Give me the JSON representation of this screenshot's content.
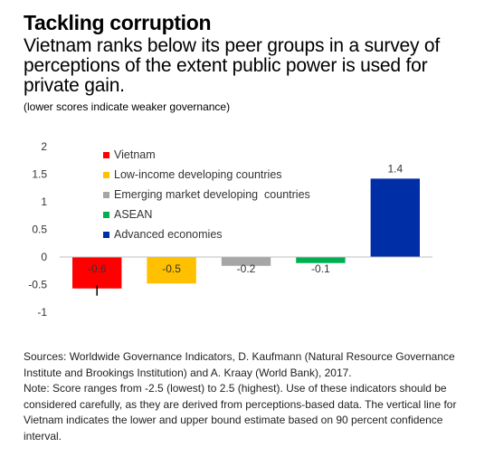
{
  "title": "Tackling corruption",
  "subtitle": "Vietnam ranks below its peer groups in a survey of perceptions of the extent public power is used for private gain.",
  "note": "(lower scores indicate weaker governance)",
  "chart_data": {
    "type": "bar",
    "title": "",
    "xlabel": "",
    "ylabel": "",
    "ylim": [
      -1,
      2
    ],
    "yticks": [
      2,
      1.5,
      1,
      0.5,
      0,
      -0.5,
      -1
    ],
    "ytick_labels": [
      "2",
      "1.5",
      "1",
      "0.5",
      "0",
      "-0.5",
      "-1"
    ],
    "grid": false,
    "legend_position": "top-left",
    "categories": [
      "Vietnam",
      "Low-income developing countries",
      "Emerging market developing  countries",
      "ASEAN",
      "Advanced economies"
    ],
    "values": [
      -0.57,
      -0.48,
      -0.16,
      -0.11,
      1.42
    ],
    "data_labels": [
      "-0.6",
      "-0.5",
      "-0.2",
      "-0.1",
      "1.4"
    ],
    "colors": [
      "#ff0000",
      "#ffc000",
      "#a6a6a6",
      "#00b050",
      "#002ea6"
    ],
    "error_bar": {
      "category": "Vietnam",
      "low": -0.7,
      "high": -0.52
    }
  },
  "sources": "Sources: Worldwide Governance Indicators, D. Kaufmann (Natural Resource Governance Institute and Brookings Institution) and A. Kraay (World Bank), 2017.",
  "footnote": "Note: Score ranges from -2.5 (lowest) to 2.5 (highest). Use of these indicators should be considered carefully, as they are derived from perceptions-based data. The vertical line for Vietnam indicates the lower and upper bound estimate based on 90 percent confidence interval."
}
